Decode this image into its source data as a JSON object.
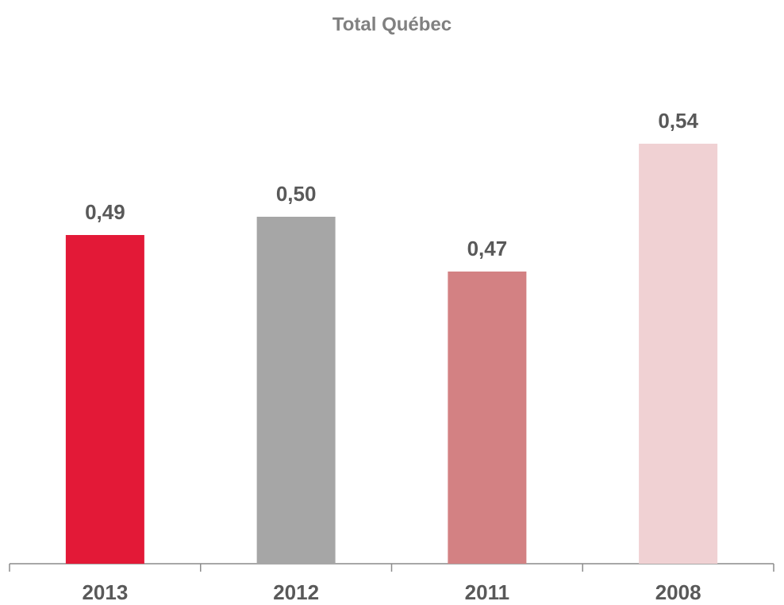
{
  "chart_data": {
    "type": "bar",
    "title": "Total Québec",
    "categories": [
      "2013",
      "2012",
      "2011",
      "2008"
    ],
    "values": [
      0.49,
      0.5,
      0.47,
      0.54
    ],
    "value_labels": [
      "0,49",
      "0,50",
      "0,47",
      "0,54"
    ],
    "colors": [
      "#e31937",
      "#a6a6a6",
      "#d38183",
      "#f0d1d3"
    ],
    "ylim": [
      0.31,
      0.56
    ]
  }
}
